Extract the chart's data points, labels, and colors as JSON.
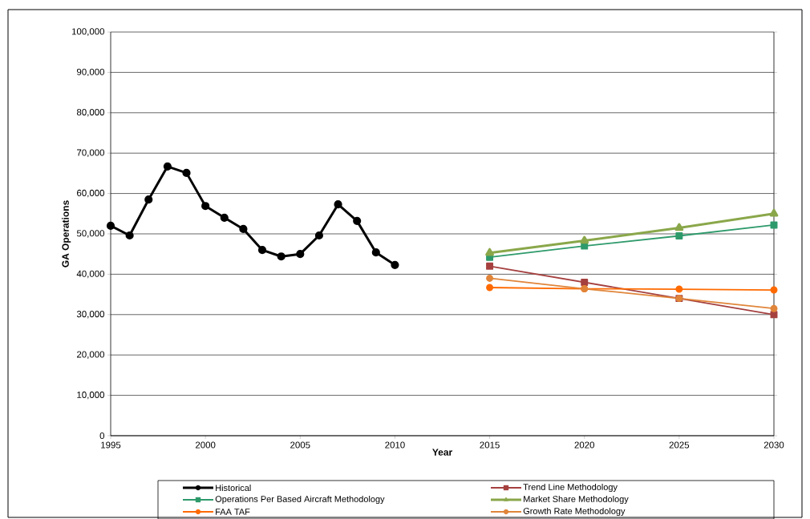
{
  "chart_data": {
    "type": "line",
    "xlabel": "Year",
    "ylabel": "GA Operations",
    "xlim": [
      1995,
      2030
    ],
    "xticks": [
      1995,
      2000,
      2005,
      2010,
      2015,
      2020,
      2025,
      2030
    ],
    "ylim": [
      0,
      100000
    ],
    "yticks": [
      0,
      {
        "value": 10000,
        "label": "10,000"
      },
      {
        "value": 20000,
        "label": "20,000"
      },
      {
        "value": 30000,
        "label": "30,000"
      },
      {
        "value": 40000,
        "label": "40,000"
      },
      {
        "value": 50000,
        "label": "50,000"
      },
      {
        "value": 60000,
        "label": "60,000"
      },
      {
        "value": 70000,
        "label": "70,000"
      },
      {
        "value": 80000,
        "label": "80,000"
      },
      {
        "value": 90000,
        "label": "90,000"
      },
      {
        "value": 100000,
        "label": "100,000"
      }
    ],
    "grid": "y",
    "legend": "bottom",
    "series": [
      {
        "name": "Historical",
        "color": "#000000",
        "marker": "circle",
        "x": [
          1995,
          1996,
          1997,
          1998,
          1999,
          2000,
          2001,
          2002,
          2003,
          2004,
          2005,
          2006,
          2007,
          2008,
          2009,
          2010
        ],
        "values": [
          52000,
          49600,
          58500,
          66700,
          65100,
          56900,
          54000,
          51200,
          46000,
          44400,
          45000,
          49600,
          57300,
          53200,
          45400,
          42300
        ]
      },
      {
        "name": "Trend Line Methodology",
        "color": "#a5403f",
        "marker": "square",
        "x": [
          2015,
          2020,
          2025,
          2030
        ],
        "values": [
          42000,
          38000,
          34000,
          30000
        ]
      },
      {
        "name": "Operations Per Based Aircraft Methodology",
        "color": "#2e9a6b",
        "marker": "square",
        "x": [
          2015,
          2020,
          2025,
          2030
        ],
        "values": [
          44200,
          47000,
          49500,
          52200
        ]
      },
      {
        "name": "Market Share Methodology",
        "color": "#8aa74a",
        "marker": "triangle",
        "x": [
          2015,
          2020,
          2025,
          2030
        ],
        "values": [
          45300,
          48300,
          51500,
          55000
        ]
      },
      {
        "name": "FAA TAF",
        "color": "#ff6a00",
        "marker": "circle",
        "x": [
          2015,
          2020,
          2025,
          2030
        ],
        "values": [
          36700,
          36400,
          36300,
          36100
        ]
      },
      {
        "name": "Growth Rate Methodology",
        "color": "#e0853a",
        "marker": "circle",
        "x": [
          2015,
          2020,
          2025,
          2030
        ],
        "values": [
          39000,
          36400,
          34000,
          31500
        ]
      }
    ]
  }
}
